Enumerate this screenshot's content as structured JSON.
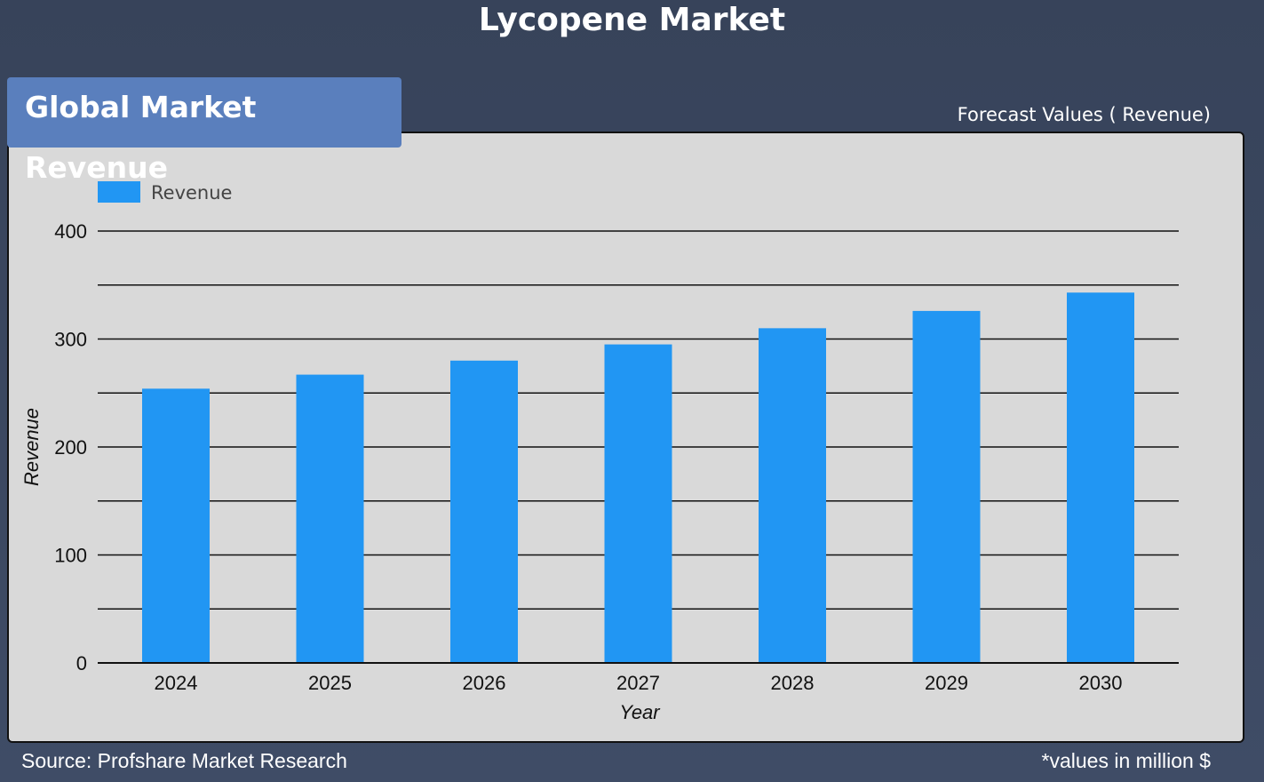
{
  "header": {
    "title": "Lycopene Market",
    "panel_title": "Global Market Revenue",
    "forecast_label": "Forecast Values ( Revenue)"
  },
  "footer": {
    "source": "Source: Profshare Market Research",
    "units": "*values in million $"
  },
  "chart_data": {
    "type": "bar",
    "categories": [
      "2024",
      "2025",
      "2026",
      "2027",
      "2028",
      "2029",
      "2030"
    ],
    "series": [
      {
        "name": "Revenue",
        "values": [
          254,
          267,
          280,
          295,
          310,
          326,
          343
        ],
        "color": "#2196f3"
      }
    ],
    "xlabel": "Year",
    "ylabel": "Revenue",
    "ylim": [
      0,
      400
    ],
    "yticks": [
      0,
      100,
      200,
      300,
      400
    ],
    "grid": true,
    "legend_position": "top-left"
  }
}
